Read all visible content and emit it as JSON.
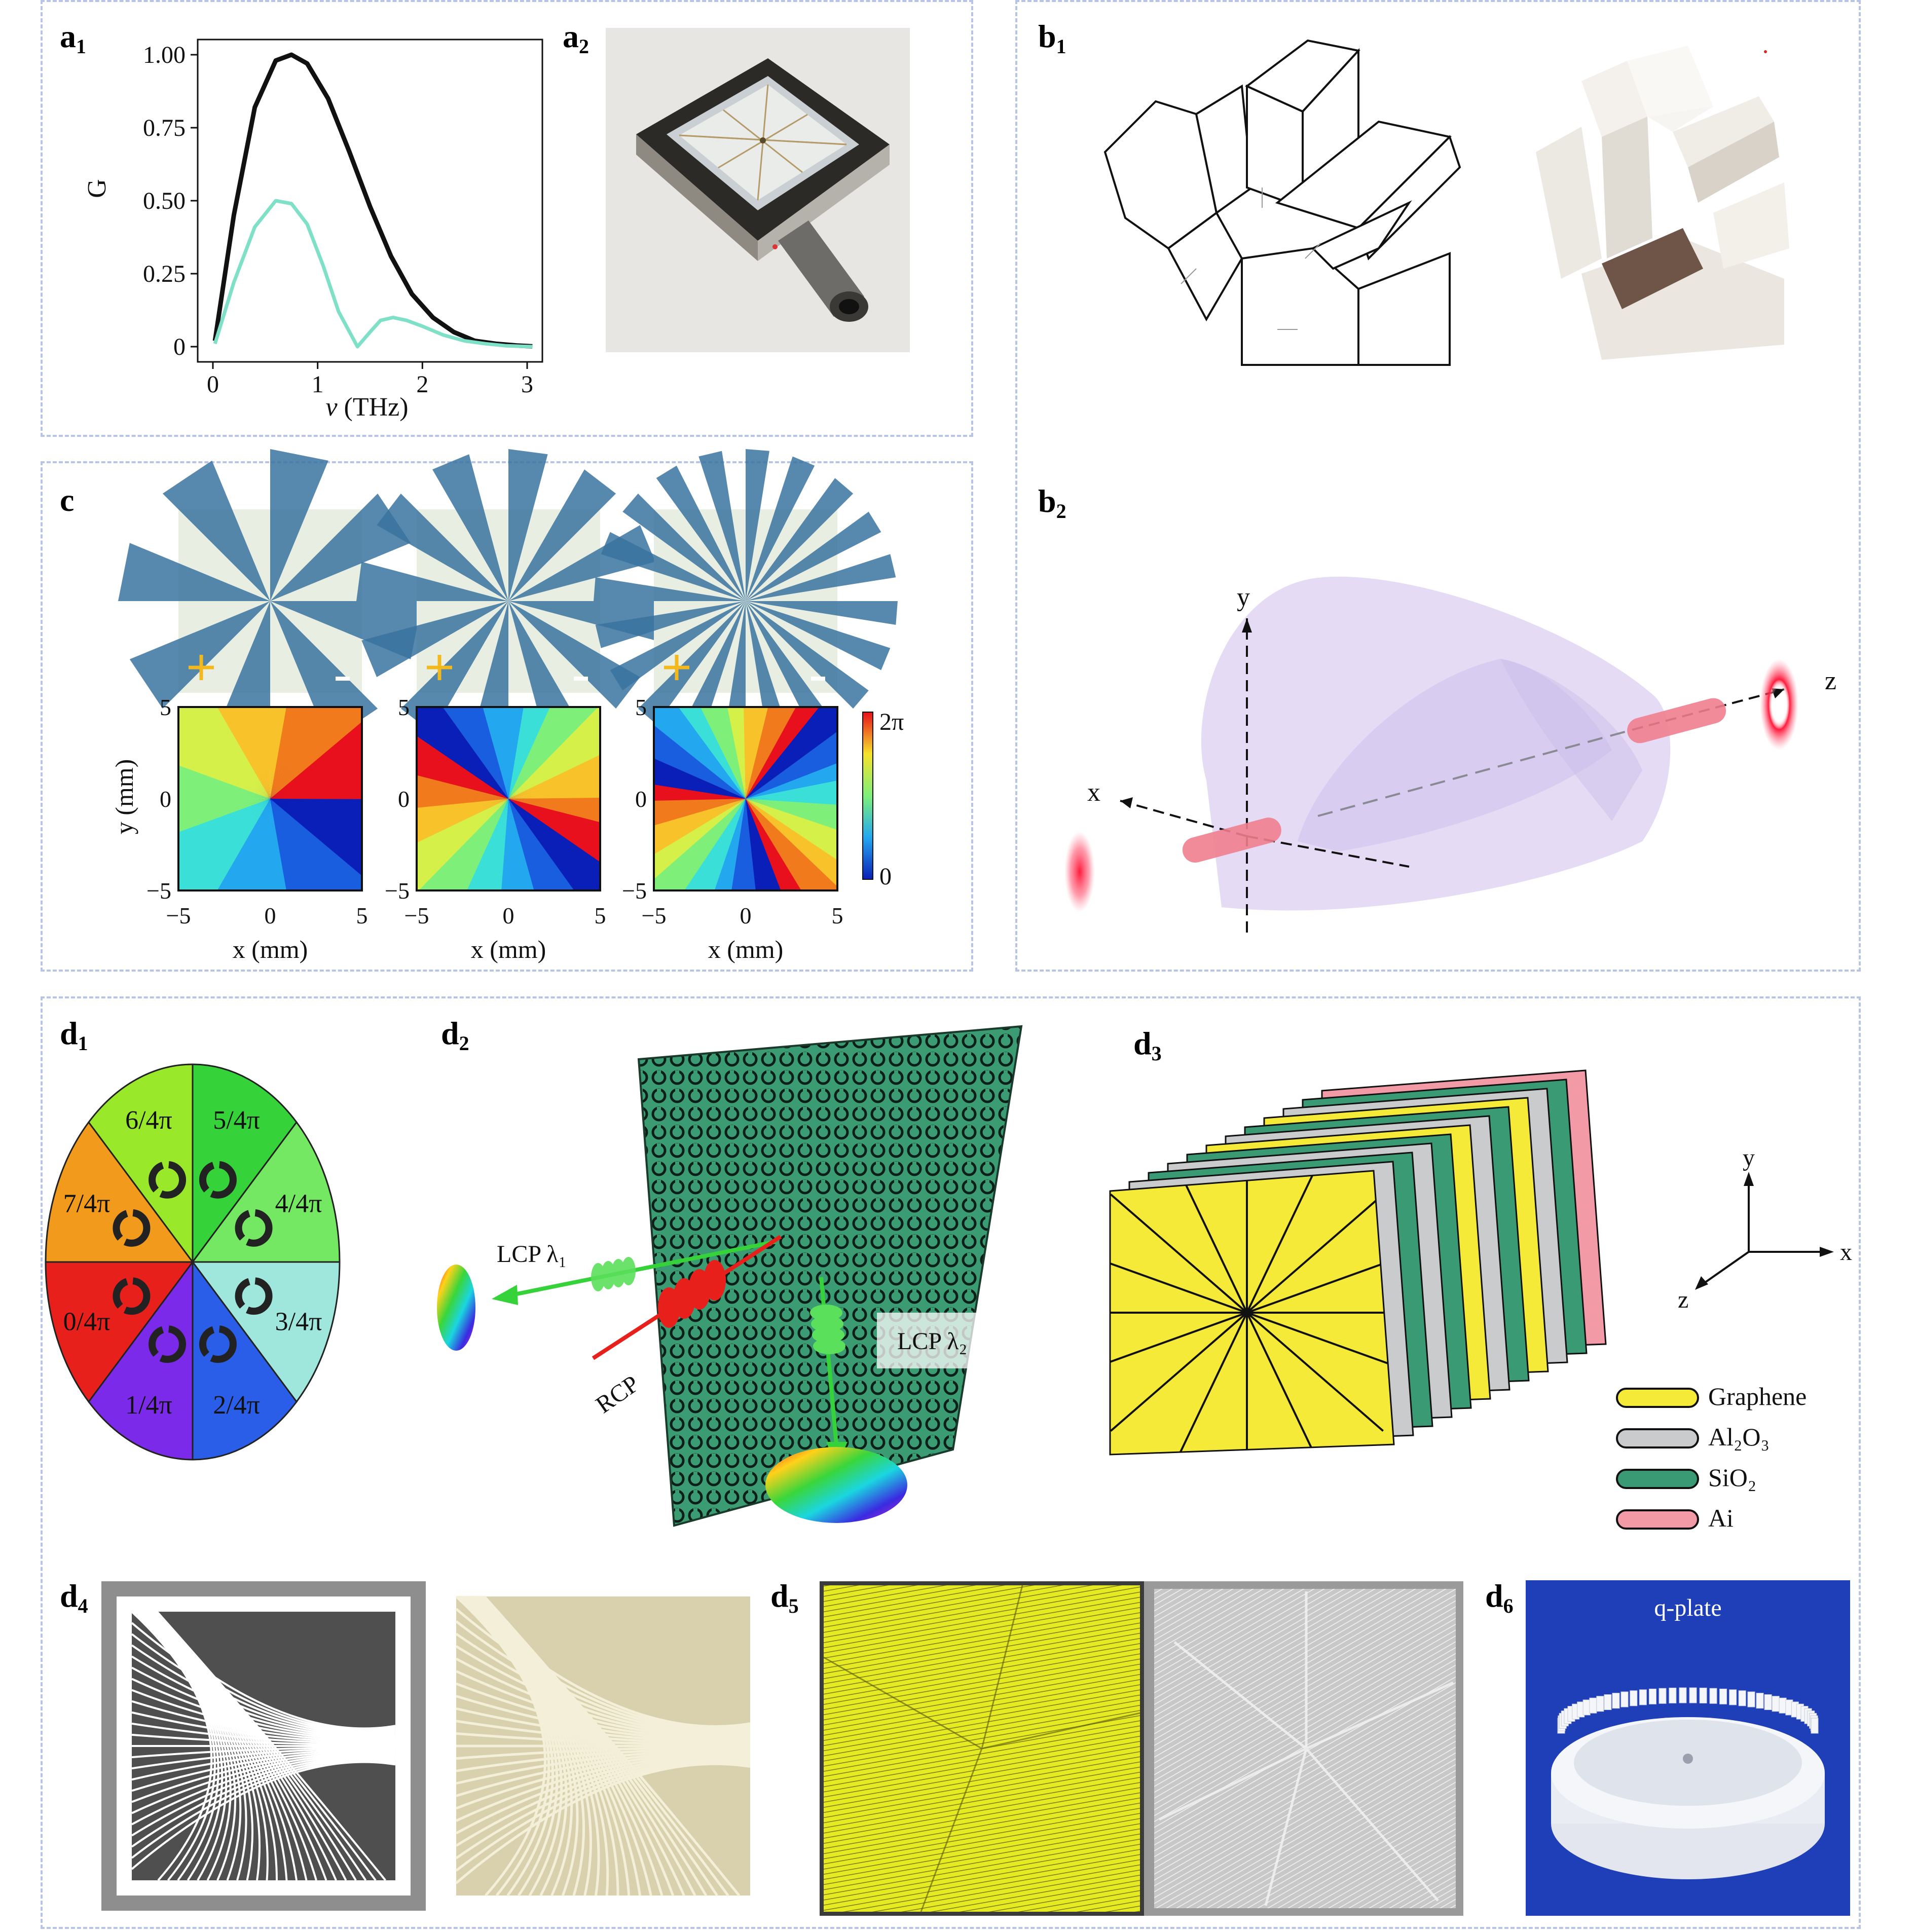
{
  "panels": {
    "a1": {
      "label": "a",
      "sub": "1"
    },
    "a2": {
      "label": "a",
      "sub": "2"
    },
    "b1": {
      "label": "b",
      "sub": "1"
    },
    "b2": {
      "label": "b",
      "sub": "2"
    },
    "c": {
      "label": "c",
      "sub": ""
    },
    "d1": {
      "label": "d",
      "sub": "1"
    },
    "d2": {
      "label": "d",
      "sub": "2"
    },
    "d3": {
      "label": "d",
      "sub": "3"
    },
    "d4": {
      "label": "d",
      "sub": "4"
    },
    "d5": {
      "label": "d",
      "sub": "5"
    },
    "d6": {
      "label": "d",
      "sub": "6"
    }
  },
  "chart_data": [
    {
      "type": "line",
      "ylabel": "G",
      "xlabel_italic": "ν",
      "xlabel_rest": " (THz)",
      "xlim": [
        0,
        3
      ],
      "ylim": [
        0,
        1
      ],
      "xticks": [
        "0",
        "1",
        "2",
        "3"
      ],
      "yticks": [
        "0",
        "0.25",
        "0.50",
        "0.75",
        "1.00"
      ],
      "series": [
        {
          "color": "#111111",
          "x": [
            0.02,
            0.2,
            0.4,
            0.6,
            0.75,
            0.9,
            1.1,
            1.3,
            1.5,
            1.7,
            1.9,
            2.1,
            2.3,
            2.5,
            2.7,
            2.9,
            3.05
          ],
          "y": [
            0.02,
            0.45,
            0.82,
            0.98,
            1.0,
            0.97,
            0.85,
            0.67,
            0.48,
            0.31,
            0.18,
            0.1,
            0.05,
            0.02,
            0.01,
            0.004,
            0.001
          ]
        },
        {
          "color": "#7fe0c8",
          "x": [
            0.02,
            0.2,
            0.4,
            0.6,
            0.75,
            0.9,
            1.05,
            1.2,
            1.38,
            1.5,
            1.6,
            1.72,
            1.85,
            2.0,
            2.2,
            2.4,
            2.6,
            2.8,
            3.05
          ],
          "y": [
            0.01,
            0.22,
            0.41,
            0.5,
            0.49,
            0.42,
            0.28,
            0.12,
            0.0,
            0.05,
            0.09,
            0.1,
            0.09,
            0.07,
            0.04,
            0.02,
            0.01,
            0.003,
            0.0
          ]
        }
      ]
    }
  ],
  "c": {
    "ylabel": "y (mm)",
    "xlabel": "x (mm)",
    "ticks": [
      "−5",
      "0",
      "5"
    ],
    "colorbar": {
      "top": "2π",
      "bottom": "0"
    }
  },
  "b2": {
    "axes": {
      "x": "x",
      "y": "y",
      "z": "z"
    }
  },
  "d1": {
    "sectors": [
      "5/4π",
      "4/4π",
      "3/4π",
      "2/4π",
      "1/4π",
      "0/4π",
      "7/4π",
      "6/4π"
    ]
  },
  "d2": {
    "lcp1": "LCP λ₁",
    "lcp2": "LCP λ₂",
    "rcp": "RCP"
  },
  "d3": {
    "axes": {
      "x": "x",
      "y": "y",
      "z": "z"
    },
    "legend": [
      {
        "name": "Graphene",
        "color": "#f5ea38"
      },
      {
        "name": "Al₂O₃",
        "color": "#c9cbcc"
      },
      {
        "name": "SiO₂",
        "color": "#3a9a74"
      },
      {
        "name": "Ai",
        "color": "#f29aa6"
      }
    ]
  },
  "d6": {
    "caption": "q-plate"
  }
}
